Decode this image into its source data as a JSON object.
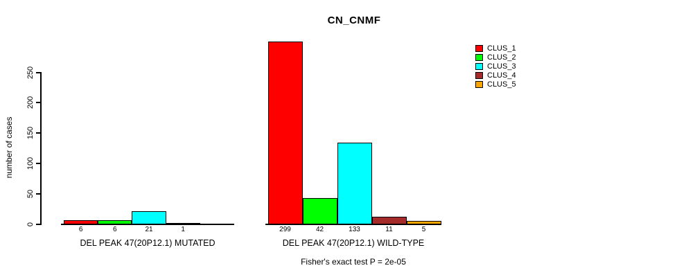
{
  "chart_data": {
    "type": "bar",
    "title": "CN_CNMF",
    "ylabel": "number of cases",
    "ylim": [
      0,
      250
    ],
    "yticks": [
      0,
      50,
      100,
      150,
      200,
      250
    ],
    "ytick_labels": [
      "0",
      "50",
      "100",
      "150",
      "200",
      "250"
    ],
    "grid": false,
    "legend_position": "right",
    "series_names": [
      "CLUS_1",
      "CLUS_2",
      "CLUS_3",
      "CLUS_4",
      "CLUS_5"
    ],
    "series_colors": [
      "#ff0000",
      "#00ff00",
      "#00ffff",
      "#a52a2a",
      "#ffa500"
    ],
    "groups": [
      {
        "label": "DEL PEAK 47(20P12.1) MUTATED",
        "values": [
          6,
          6,
          21,
          1,
          0
        ],
        "value_labels": [
          "6",
          "6",
          "21",
          "1",
          ""
        ]
      },
      {
        "label": "DEL PEAK 47(20P12.1) WILD-TYPE",
        "values": [
          299,
          42,
          133,
          11,
          5
        ],
        "value_labels": [
          "299",
          "42",
          "133",
          "11",
          "5"
        ]
      }
    ],
    "annotation": "Fisher's exact test P = 2e-05"
  },
  "colors": {
    "background": "#ffffff",
    "axis": "#000000",
    "text": "#000000"
  }
}
